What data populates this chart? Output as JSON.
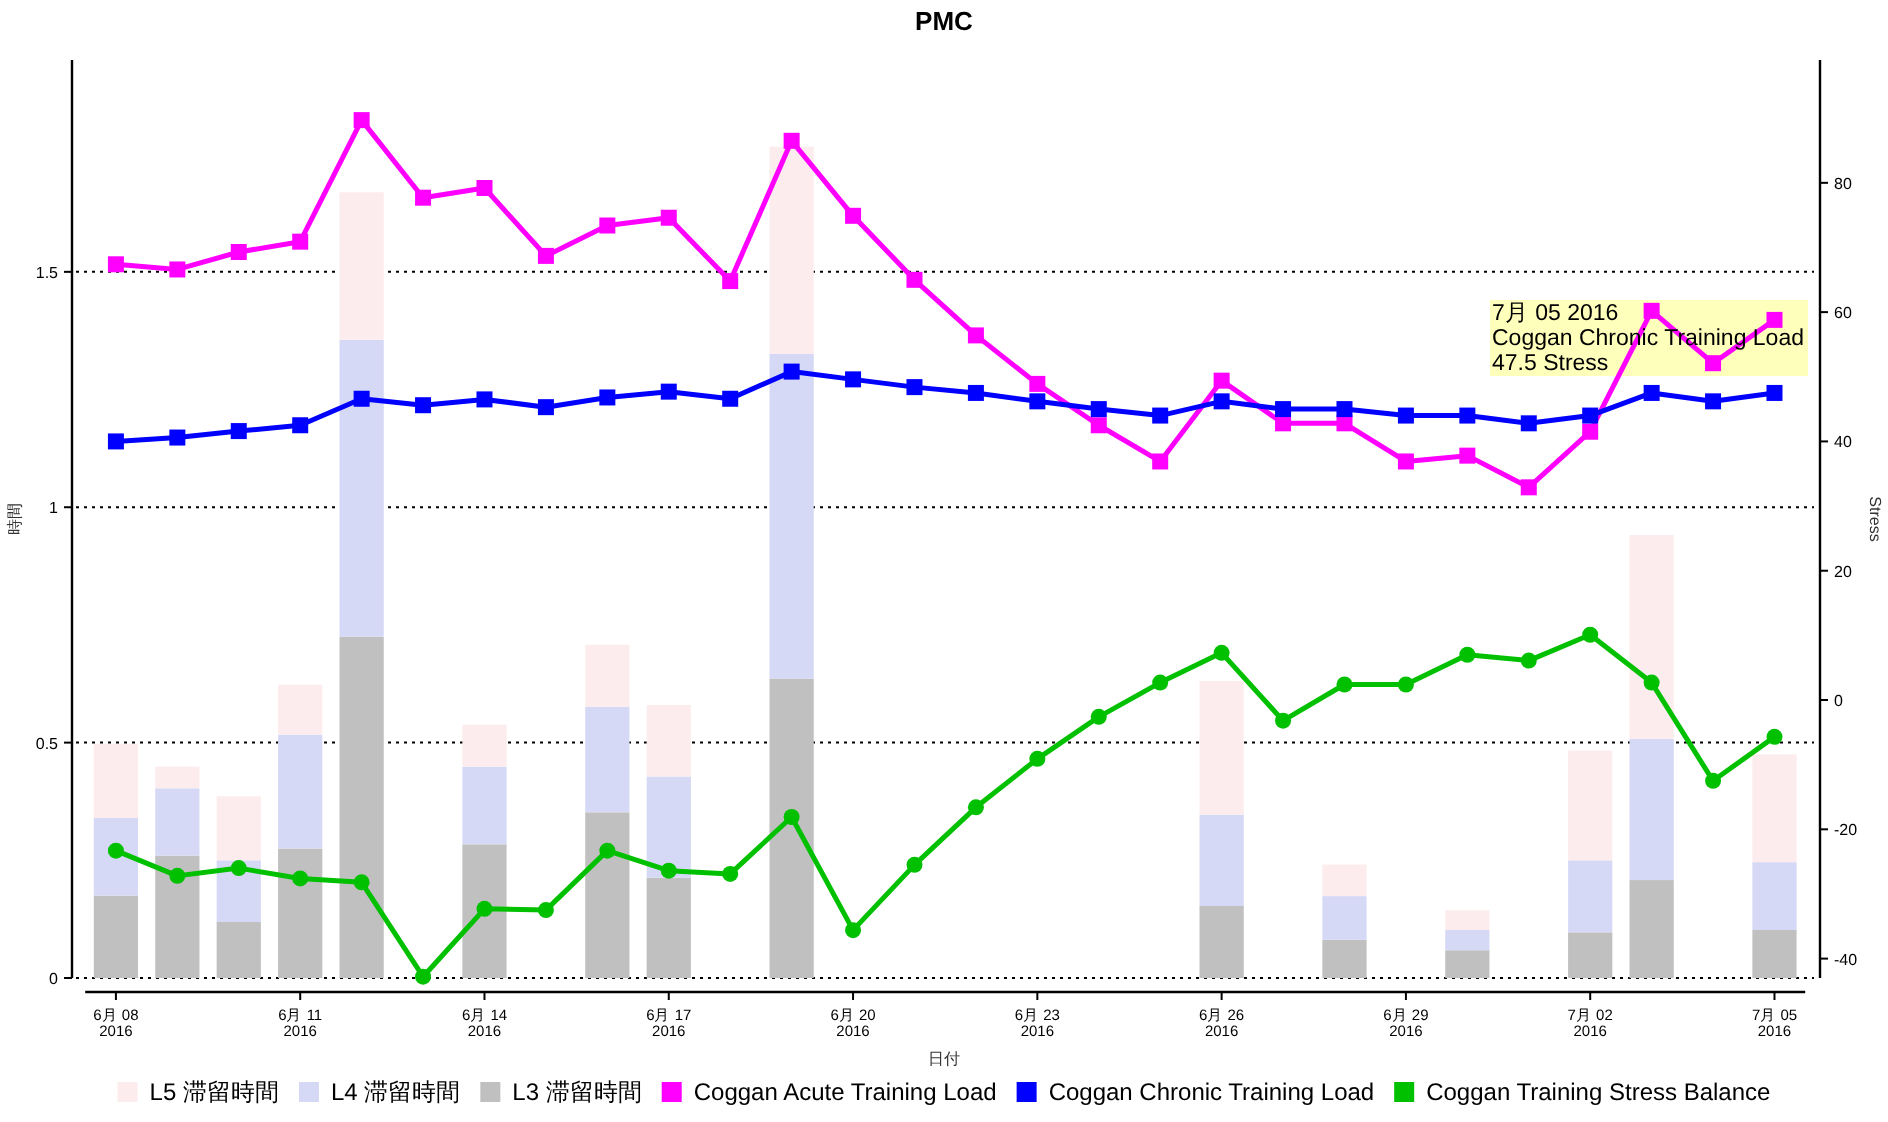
{
  "chart_data": {
    "type": "bar",
    "title": "PMC",
    "xlabel": "日付",
    "ylabel": "時間",
    "y2label": "Stress",
    "categories": [
      "6月 08\n2016",
      null,
      null,
      "6月 11\n2016",
      null,
      null,
      "6月 14\n2016",
      null,
      null,
      "6月 17\n2016",
      null,
      null,
      "6月 20\n2016",
      null,
      null,
      "6月 23\n2016",
      null,
      null,
      "6月 26\n2016",
      null,
      null,
      "6月 29\n2016",
      null,
      null,
      "7月 02\n2016",
      null,
      null,
      "7月 05\n2016"
    ],
    "stacked": true,
    "series": [
      {
        "name": "L3 滞留時間",
        "color": "#c0c0c0",
        "values": [
          0.175,
          0.26,
          0.119,
          0.275,
          0.725,
          null,
          0.284,
          null,
          0.352,
          0.213,
          null,
          0.636,
          null,
          null,
          null,
          null,
          null,
          null,
          0.153,
          null,
          0.081,
          null,
          0.059,
          null,
          0.097,
          0.208,
          null,
          0.102
        ]
      },
      {
        "name": "L4 滞留時間",
        "color": "#d5d9f5",
        "values": [
          0.165,
          0.143,
          0.131,
          0.242,
          0.631,
          null,
          0.165,
          null,
          0.224,
          0.215,
          null,
          0.69,
          null,
          null,
          null,
          null,
          null,
          null,
          0.194,
          null,
          0.093,
          null,
          0.043,
          null,
          0.153,
          0.3,
          null,
          0.144
        ]
      },
      {
        "name": "L5 滞留時間",
        "color": "#fdeced",
        "values": [
          0.157,
          0.046,
          0.136,
          0.106,
          0.313,
          null,
          0.089,
          null,
          0.132,
          0.152,
          null,
          0.44,
          null,
          null,
          null,
          null,
          null,
          null,
          0.284,
          null,
          0.067,
          null,
          0.042,
          null,
          0.233,
          0.433,
          null,
          0.229
        ]
      },
      {
        "name": "Coggan Acute Training Load",
        "type": "line",
        "axis": "y2",
        "marker": "square",
        "color": "#ff00ff",
        "values": [
          67.4,
          66.6,
          69.3,
          70.9,
          89.7,
          77.7,
          79.2,
          68.7,
          73.4,
          74.6,
          64.8,
          86.5,
          74.9,
          65.0,
          56.4,
          48.9,
          42.5,
          36.9,
          49.4,
          42.8,
          42.8,
          36.9,
          37.8,
          32.9,
          41.5,
          60.2,
          52.1,
          58.8
        ]
      },
      {
        "name": "Coggan Chronic Training Load",
        "type": "line",
        "axis": "y2",
        "marker": "square",
        "color": "#0000ff",
        "values": [
          40.0,
          40.6,
          41.6,
          42.5,
          46.6,
          45.6,
          46.5,
          45.3,
          46.8,
          47.7,
          46.6,
          50.8,
          49.6,
          48.4,
          47.5,
          46.2,
          45.0,
          44.0,
          46.2,
          45.0,
          45.0,
          44.0,
          44.0,
          42.8,
          44.0,
          47.5,
          46.2,
          47.5
        ]
      },
      {
        "name": "Coggan Training Stress Balance",
        "type": "line",
        "axis": "y2",
        "marker": "circle",
        "color": "#00c000",
        "values": [
          -23.3,
          -27.2,
          -26.0,
          -27.6,
          -28.2,
          -42.8,
          -32.3,
          -32.5,
          -23.3,
          -26.4,
          -26.9,
          -18.1,
          -35.6,
          -25.5,
          -16.6,
          -9.1,
          -2.6,
          2.7,
          7.3,
          -3.2,
          2.4,
          2.4,
          7.0,
          6.1,
          10.1,
          2.7,
          -12.5,
          -5.7
        ]
      }
    ],
    "ylim": [
      0,
      1.95
    ],
    "yticks": [
      0,
      0.5,
      1,
      1.5
    ],
    "y2lim": [
      -43,
      99
    ],
    "y2ticks": [
      -40,
      -20,
      0,
      20,
      40,
      60,
      80
    ],
    "grid": "y",
    "legend": "bottom",
    "line_style": "solid",
    "annotations": [
      "7月 05 2016\nCoggan Chronic Training Load\n47.5 Stress"
    ]
  }
}
